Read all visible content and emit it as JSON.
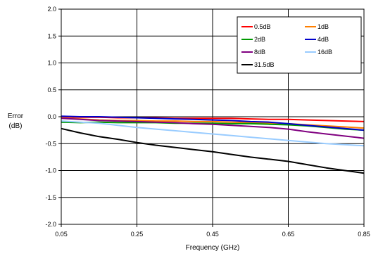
{
  "chart_data": {
    "type": "line",
    "title": "",
    "xlabel": "Frequency (GHz)",
    "ylabel_lines": [
      "Error",
      "(dB)"
    ],
    "xlim": [
      0.05,
      0.85
    ],
    "ylim": [
      -2.0,
      2.0
    ],
    "x_ticks": [
      0.05,
      0.25,
      0.45,
      0.65,
      0.85
    ],
    "x_tick_labels": [
      "0.05",
      "0.25",
      "0.45",
      "0.65",
      "0.85"
    ],
    "y_ticks": [
      2.0,
      1.5,
      1.0,
      0.5,
      0.0,
      -0.5,
      -1.0,
      -1.5,
      -2.0
    ],
    "y_tick_labels": [
      "2.0",
      "1.5",
      "1.0",
      "0.5",
      "0.0",
      "-0.5",
      "-1.0",
      "-1.5",
      "-2.0"
    ],
    "grid": true,
    "legend_position": "top-right",
    "x": [
      0.05,
      0.1,
      0.15,
      0.2,
      0.25,
      0.3,
      0.35,
      0.4,
      0.45,
      0.5,
      0.55,
      0.6,
      0.65,
      0.7,
      0.75,
      0.8,
      0.85
    ],
    "series": [
      {
        "name": "0.5dB",
        "color": "#ff0000",
        "values": [
          0.0,
          -0.01,
          -0.01,
          -0.02,
          -0.02,
          -0.02,
          -0.03,
          -0.03,
          -0.03,
          -0.03,
          -0.04,
          -0.05,
          -0.05,
          -0.06,
          -0.07,
          -0.08,
          -0.09
        ]
      },
      {
        "name": "1dB",
        "color": "#ff7f00",
        "values": [
          -0.02,
          -0.04,
          -0.06,
          -0.07,
          -0.07,
          -0.08,
          -0.08,
          -0.09,
          -0.09,
          -0.1,
          -0.11,
          -0.12,
          -0.13,
          -0.15,
          -0.17,
          -0.19,
          -0.21
        ]
      },
      {
        "name": "2dB",
        "color": "#009900",
        "values": [
          -0.1,
          -0.11,
          -0.1,
          -0.11,
          -0.11,
          -0.11,
          -0.12,
          -0.12,
          -0.12,
          -0.13,
          -0.13,
          -0.14,
          -0.15,
          -0.17,
          -0.2,
          -0.23,
          -0.25
        ]
      },
      {
        "name": "4dB",
        "color": "#0000cc",
        "values": [
          0.01,
          0.0,
          0.0,
          -0.01,
          -0.02,
          -0.03,
          -0.04,
          -0.05,
          -0.06,
          -0.07,
          -0.09,
          -0.1,
          -0.13,
          -0.16,
          -0.19,
          -0.22,
          -0.25
        ]
      },
      {
        "name": "8dB",
        "color": "#800080",
        "values": [
          -0.03,
          -0.05,
          -0.07,
          -0.08,
          -0.09,
          -0.1,
          -0.11,
          -0.13,
          -0.14,
          -0.16,
          -0.18,
          -0.2,
          -0.23,
          -0.28,
          -0.32,
          -0.36,
          -0.4
        ]
      },
      {
        "name": "16dB",
        "color": "#99ccff",
        "values": [
          -0.08,
          -0.1,
          -0.12,
          -0.16,
          -0.2,
          -0.23,
          -0.26,
          -0.29,
          -0.32,
          -0.35,
          -0.38,
          -0.41,
          -0.44,
          -0.47,
          -0.5,
          -0.52,
          -0.54
        ]
      },
      {
        "name": "31.5dB",
        "color": "#000000",
        "values": [
          -0.22,
          -0.3,
          -0.37,
          -0.42,
          -0.48,
          -0.53,
          -0.57,
          -0.61,
          -0.65,
          -0.7,
          -0.75,
          -0.79,
          -0.83,
          -0.89,
          -0.95,
          -1.0,
          -1.05
        ]
      }
    ]
  }
}
